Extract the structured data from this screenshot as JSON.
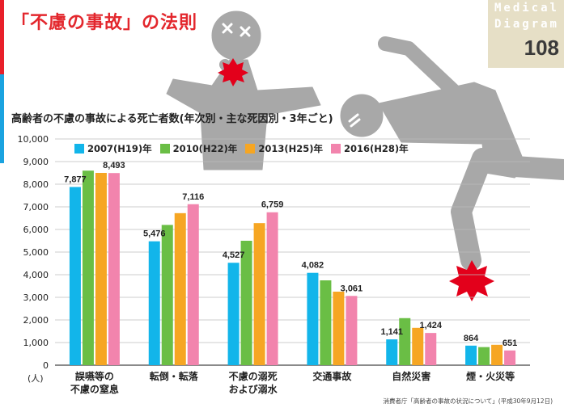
{
  "page": {
    "title": "「不慮の事故」の法則",
    "corner_word1": "Medical",
    "corner_word2": "Diagram",
    "corner_number": "108",
    "source": "消費者庁「高齢者の事故の状況について」(平成30年9月12日)"
  },
  "colors": {
    "figure": "#a8a8a8",
    "impact": "#e3001b"
  },
  "icons": [
    "choking-person-figure",
    "falling-person-figure",
    "impact-burst-icon"
  ],
  "chart_data": {
    "type": "bar",
    "title": "高齢者の不慮の事故による死亡者数(年次別・主な死因別・3年ごと)",
    "ylabel": "(人)",
    "ylim": [
      0,
      10000
    ],
    "yticks": [
      "10,000",
      "9,000",
      "8,000",
      "7,000",
      "6,000",
      "5,000",
      "4,000",
      "3,000",
      "2,000",
      "1,000",
      "0"
    ],
    "grid": true,
    "legend_position": "top-left",
    "categories": [
      "誤嚥等の\n不慮の窒息",
      "転倒・転落",
      "不慮の溺死\nおよび溺水",
      "交通事故",
      "自然災害",
      "煙・火災等"
    ],
    "series": [
      {
        "name": "2007(H19)年",
        "color": "#12b5ea",
        "values": [
          7877,
          5476,
          4527,
          4082,
          1141,
          864
        ]
      },
      {
        "name": "2010(H22)年",
        "color": "#6abe45",
        "values": [
          8600,
          6200,
          5500,
          3750,
          2080,
          800
        ]
      },
      {
        "name": "2013(H25)年",
        "color": "#f6a623",
        "values": [
          8500,
          6720,
          6280,
          3250,
          1650,
          900
        ]
      },
      {
        "name": "2016(H28)年",
        "color": "#f284ad",
        "values": [
          8493,
          7116,
          6759,
          3061,
          1424,
          651
        ]
      }
    ],
    "data_labels": [
      {
        "category": 0,
        "series": 0,
        "text": "7,877"
      },
      {
        "category": 0,
        "series": 3,
        "text": "8,493"
      },
      {
        "category": 1,
        "series": 0,
        "text": "5,476"
      },
      {
        "category": 1,
        "series": 3,
        "text": "7,116"
      },
      {
        "category": 2,
        "series": 0,
        "text": "4,527"
      },
      {
        "category": 2,
        "series": 3,
        "text": "6,759"
      },
      {
        "category": 3,
        "series": 0,
        "text": "4,082"
      },
      {
        "category": 3,
        "series": 3,
        "text": "3,061"
      },
      {
        "category": 4,
        "series": 0,
        "text": "1,141"
      },
      {
        "category": 4,
        "series": 3,
        "text": "1,424"
      },
      {
        "category": 5,
        "series": 0,
        "text": "864"
      },
      {
        "category": 5,
        "series": 3,
        "text": "651"
      }
    ]
  }
}
